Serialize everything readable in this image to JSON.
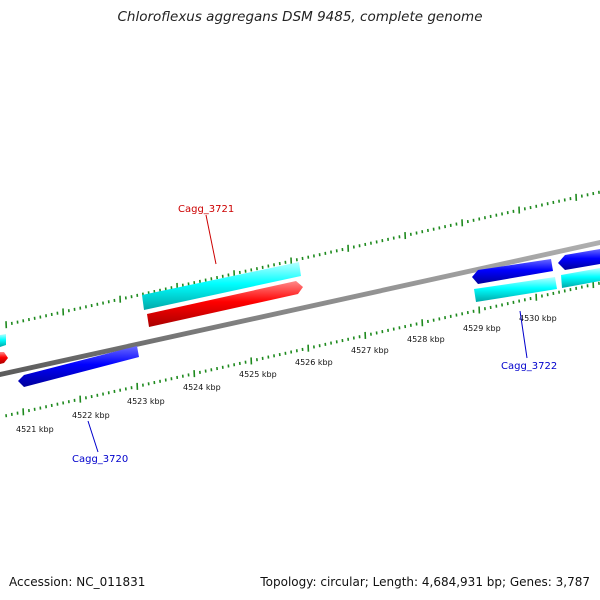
{
  "title": "Chloroflexus aggregans DSM 9485, complete genome",
  "footer": {
    "accession": "Accession: NC_011831",
    "summary": "Topology: circular; Length: 4,684,931 bp; Genes: 3,787"
  },
  "colors": {
    "forward_gene": "#00ffff",
    "reverse_gene": "#0000ff",
    "highlight_gene": "#ff0000",
    "tick": "#1e8a1e",
    "backbone": "#8c8c8c",
    "label_red": "#cc0000",
    "label_blue": "#0000cc"
  },
  "scale": {
    "tick_labels": [
      "4521 kbp",
      "4522 kbp",
      "4523 kbp",
      "4524 kbp",
      "4525 kbp",
      "4526 kbp",
      "4527 kbp",
      "4528 kbp",
      "4529 kbp",
      "4530 kbp"
    ]
  },
  "genes": [
    {
      "name": "Cagg_3720",
      "color": "blue"
    },
    {
      "name": "Cagg_3721",
      "color": "red"
    },
    {
      "name": "Cagg_3722",
      "color": "blue"
    }
  ]
}
